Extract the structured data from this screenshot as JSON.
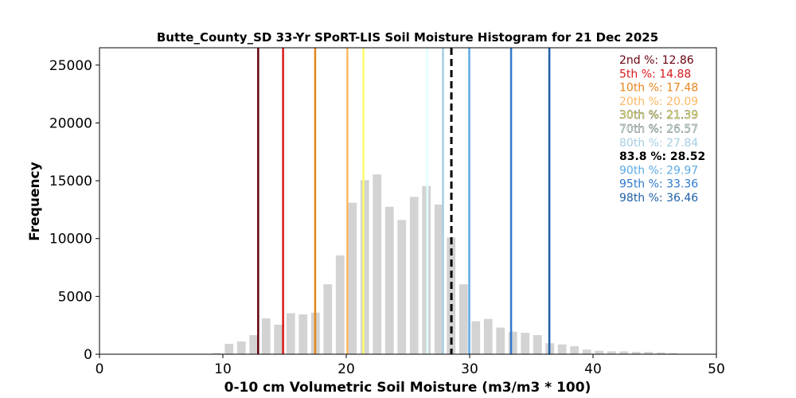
{
  "chart_data": {
    "type": "bar",
    "title": "Butte_County_SD 33-Yr SPoRT-LIS Soil Moisture Histogram for 21 Dec 2025",
    "xlabel": "0-10 cm Volumetric Soil Moisture (m3/m3 * 100)",
    "ylabel": "Frequency",
    "xlim": [
      0,
      50
    ],
    "ylim": [
      0,
      26500
    ],
    "xticks": [
      0,
      10,
      20,
      30,
      40,
      50
    ],
    "yticks": [
      0,
      5000,
      10000,
      15000,
      20000,
      25000
    ],
    "grid": false,
    "bar_color": "#d3d3d3",
    "bin_width": 1,
    "bins": [
      {
        "x": 9.5,
        "count": 100
      },
      {
        "x": 10.5,
        "count": 900
      },
      {
        "x": 11.5,
        "count": 1100
      },
      {
        "x": 12.5,
        "count": 1650
      },
      {
        "x": 13.5,
        "count": 3100
      },
      {
        "x": 14.5,
        "count": 2550
      },
      {
        "x": 15.5,
        "count": 3550
      },
      {
        "x": 16.5,
        "count": 3450
      },
      {
        "x": 17.5,
        "count": 3600
      },
      {
        "x": 18.5,
        "count": 6050
      },
      {
        "x": 19.5,
        "count": 8550
      },
      {
        "x": 20.5,
        "count": 13100
      },
      {
        "x": 21.5,
        "count": 15050
      },
      {
        "x": 22.5,
        "count": 15550
      },
      {
        "x": 23.5,
        "count": 12750
      },
      {
        "x": 24.5,
        "count": 11600
      },
      {
        "x": 25.5,
        "count": 13600
      },
      {
        "x": 26.5,
        "count": 14550
      },
      {
        "x": 27.5,
        "count": 12950
      },
      {
        "x": 28.5,
        "count": 10100
      },
      {
        "x": 29.5,
        "count": 6050
      },
      {
        "x": 30.5,
        "count": 2850
      },
      {
        "x": 31.5,
        "count": 3050
      },
      {
        "x": 32.5,
        "count": 2300
      },
      {
        "x": 33.5,
        "count": 1950
      },
      {
        "x": 34.5,
        "count": 1850
      },
      {
        "x": 35.5,
        "count": 1650
      },
      {
        "x": 36.5,
        "count": 950
      },
      {
        "x": 37.5,
        "count": 850
      },
      {
        "x": 38.5,
        "count": 700
      },
      {
        "x": 39.5,
        "count": 400
      },
      {
        "x": 40.5,
        "count": 300
      },
      {
        "x": 41.5,
        "count": 250
      },
      {
        "x": 42.5,
        "count": 250
      },
      {
        "x": 43.5,
        "count": 200
      },
      {
        "x": 44.5,
        "count": 200
      },
      {
        "x": 45.5,
        "count": 150
      },
      {
        "x": 46.5,
        "count": 100
      }
    ],
    "percentile_lines": [
      {
        "label": "2nd %: 12.86",
        "value": 12.86,
        "color": "#67000d",
        "dashed": false
      },
      {
        "label": "5th %: 14.88",
        "value": 14.88,
        "color": "#d7191c",
        "dashed": false
      },
      {
        "label": "10th %: 17.48",
        "value": 17.48,
        "color": "#e6851a",
        "dashed": false
      },
      {
        "label": "20th %: 20.09",
        "value": 20.09,
        "color": "#fdb863",
        "dashed": false
      },
      {
        "label": "30th %: 21.39",
        "value": 21.39,
        "color": "#ffff66",
        "dashed": false
      },
      {
        "label": "70th %: 26.57",
        "value": 26.57,
        "color": "#e0ffff",
        "dashed": false
      },
      {
        "label": "80th %: 27.84",
        "value": 27.84,
        "color": "#a6cee3",
        "dashed": false
      },
      {
        "label": "83.8 %: 28.52",
        "value": 28.52,
        "color": "#000000",
        "dashed": true
      },
      {
        "label": "90th %: 29.97",
        "value": 29.97,
        "color": "#5aaae6",
        "dashed": false
      },
      {
        "label": "95th %: 33.36",
        "value": 33.36,
        "color": "#2f78cf",
        "dashed": false
      },
      {
        "label": "98th %: 36.46",
        "value": 36.46,
        "color": "#1f5fa8",
        "dashed": false
      }
    ],
    "annotation_placement": "top-right"
  }
}
